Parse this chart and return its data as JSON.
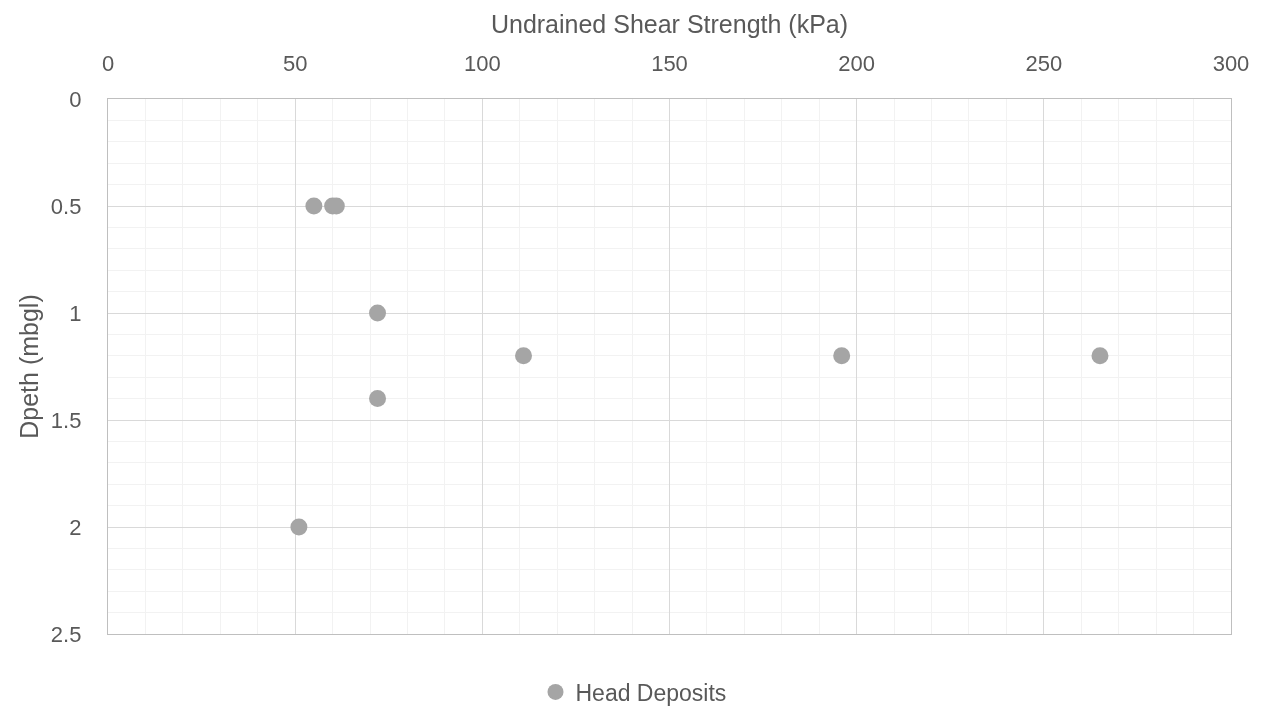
{
  "chart_data": {
    "type": "scatter",
    "xlabel": "Undrained Shear Strength (kPa)",
    "ylabel": "Dpeth (mbgl)",
    "series": [
      {
        "name": "Head Deposits",
        "color": "#a5a5a5",
        "x": [
          55,
          60,
          61,
          72,
          111,
          196,
          265,
          72,
          51
        ],
        "values": [
          0.5,
          0.5,
          0.5,
          1,
          1.2,
          1.2,
          1.2,
          1.4,
          2
        ]
      }
    ],
    "xlim": [
      0,
      300
    ],
    "xticks": [
      0,
      {
        "value": 10,
        "label": null
      },
      {
        "value": 20,
        "label": null
      },
      {
        "value": 30,
        "label": null
      },
      {
        "value": 40,
        "label": null
      },
      50,
      {
        "value": 60,
        "label": null
      },
      {
        "value": 70,
        "label": null
      },
      {
        "value": 80,
        "label": null
      },
      {
        "value": 90,
        "label": null
      },
      100,
      {
        "value": 110,
        "label": null
      },
      {
        "value": 120,
        "label": null
      },
      {
        "value": 130,
        "label": null
      },
      {
        "value": 140,
        "label": null
      },
      150,
      {
        "value": 160,
        "label": null
      },
      {
        "value": 170,
        "label": null
      },
      {
        "value": 180,
        "label": null
      },
      {
        "value": 190,
        "label": null
      },
      200,
      {
        "value": 210,
        "label": null
      },
      {
        "value": 220,
        "label": null
      },
      {
        "value": 230,
        "label": null
      },
      {
        "value": 240,
        "label": null
      },
      250,
      {
        "value": 260,
        "label": null
      },
      {
        "value": 270,
        "label": null
      },
      {
        "value": 280,
        "label": null
      },
      {
        "value": 290,
        "label": null
      },
      300
    ],
    "ylim": [
      2.5,
      0
    ],
    "yticks": [
      0,
      {
        "value": 0.1,
        "label": null
      },
      {
        "value": 0.2,
        "label": null
      },
      {
        "value": 0.3,
        "label": null
      },
      {
        "value": 0.4,
        "label": null
      },
      0.5,
      {
        "value": 0.6,
        "label": null
      },
      {
        "value": 0.7,
        "label": null
      },
      {
        "value": 0.8,
        "label": null
      },
      {
        "value": 0.9,
        "label": null
      },
      1,
      {
        "value": 1.1,
        "label": null
      },
      {
        "value": 1.2,
        "label": null
      },
      {
        "value": 1.3,
        "label": null
      },
      {
        "value": 1.4,
        "label": null
      },
      1.5,
      {
        "value": 1.6,
        "label": null
      },
      {
        "value": 1.7,
        "label": null
      },
      {
        "value": 1.8,
        "label": null
      },
      {
        "value": 1.9,
        "label": null
      },
      2,
      {
        "value": 2.1,
        "label": null
      },
      {
        "value": 2.2,
        "label": null
      },
      {
        "value": 2.3,
        "label": null
      },
      {
        "value": 2.4,
        "label": null
      },
      2.5
    ],
    "grid": true,
    "legend": "bottom",
    "marker": "circle"
  }
}
